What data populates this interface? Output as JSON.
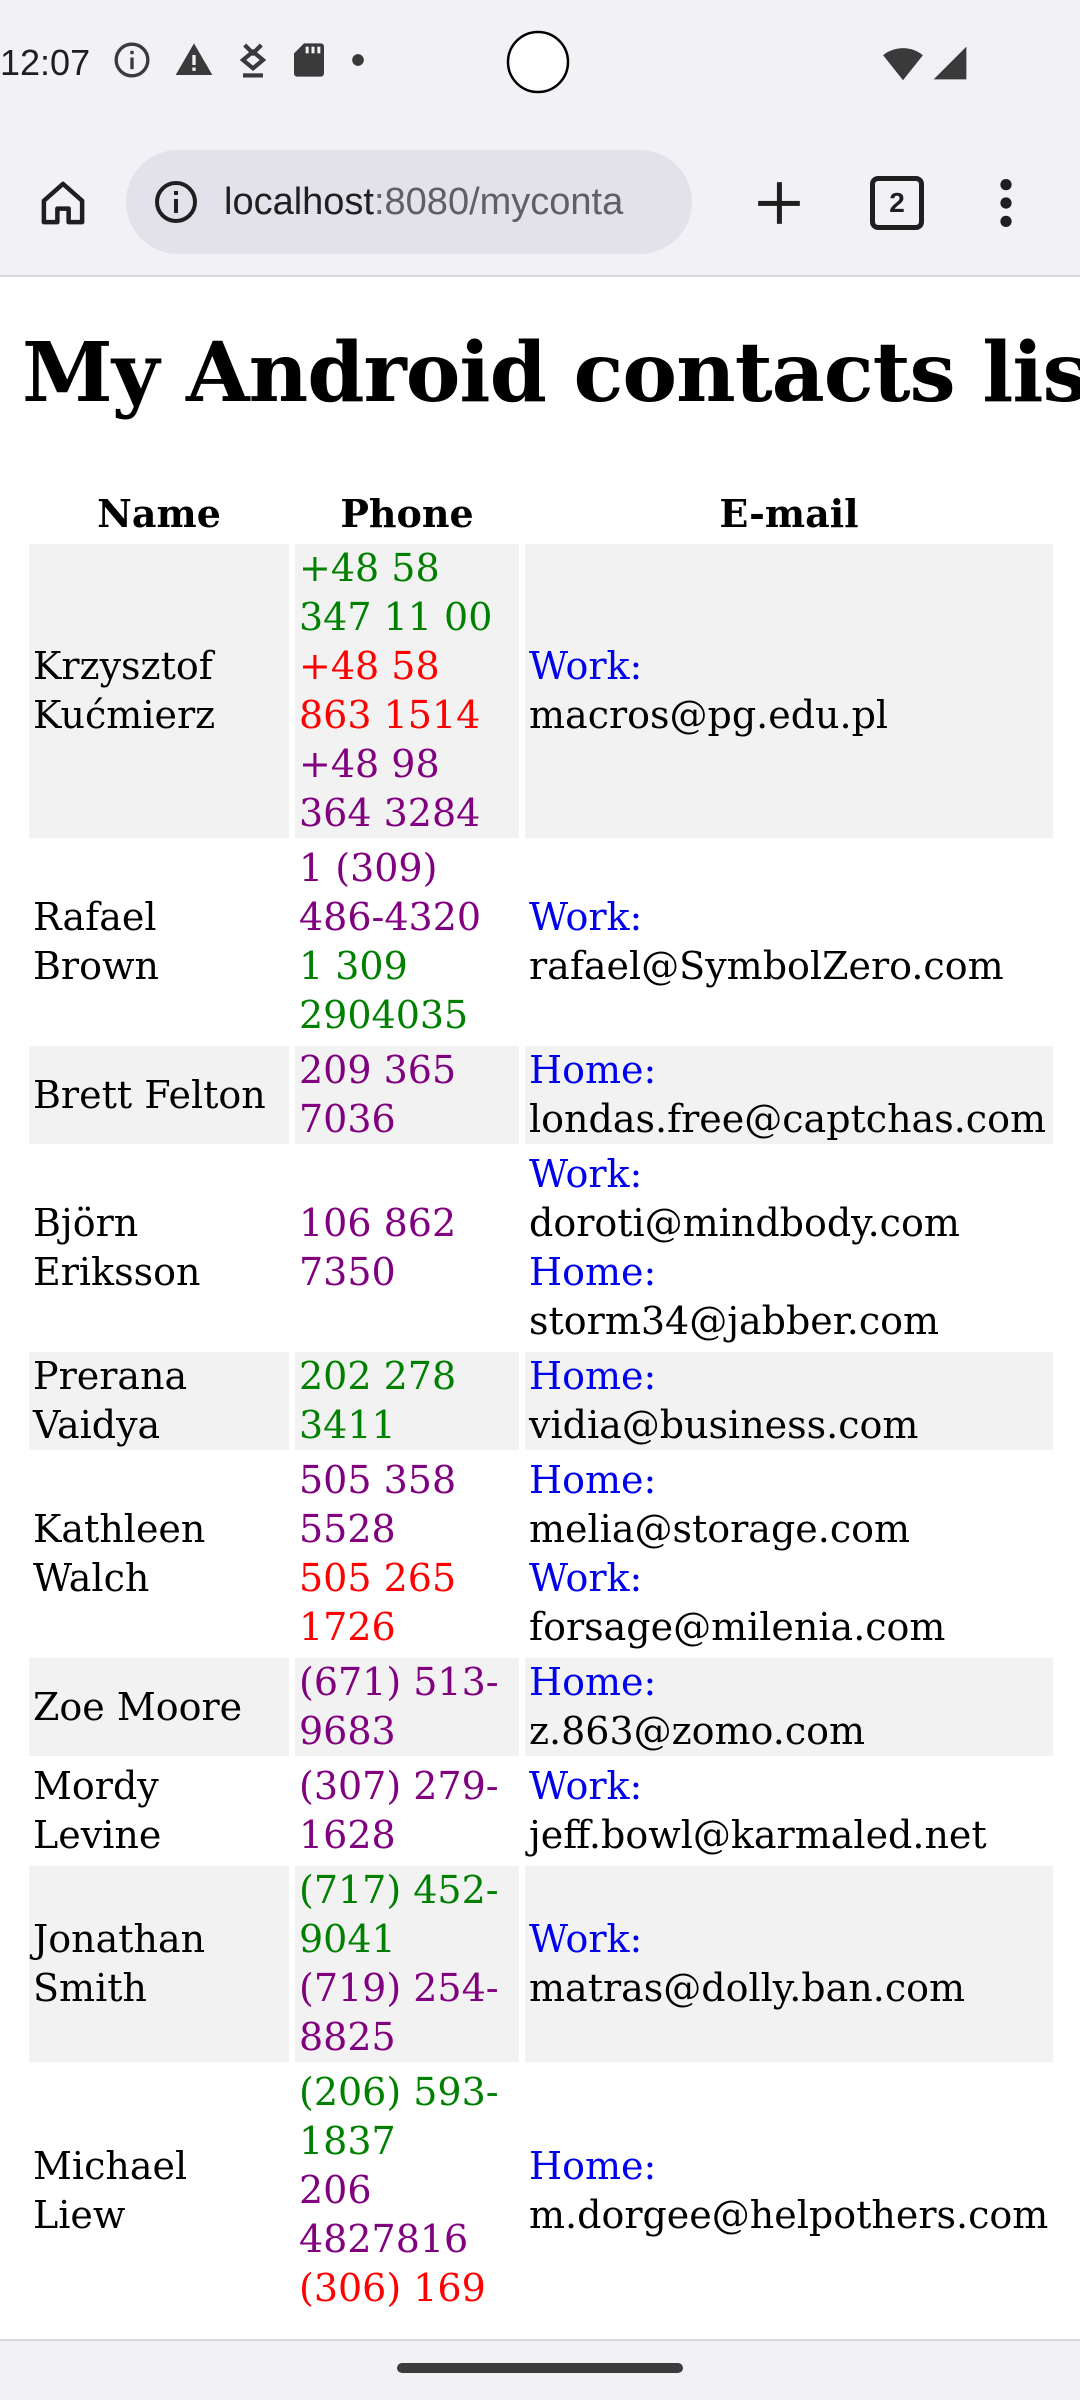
{
  "status_bar": {
    "time": "12:07",
    "left_icons": [
      "info-icon",
      "warning-icon",
      "download-icon",
      "sd-card-icon",
      "dot-icon"
    ],
    "right_icons": [
      "wifi-icon",
      "cell-signal-icon"
    ]
  },
  "browser": {
    "url_host": "localhost",
    "url_rest": ":8080/myconta",
    "tab_count": "2",
    "icons": [
      "home-icon",
      "info-icon",
      "plus-icon",
      "tabs-icon",
      "more-vert-icon"
    ]
  },
  "page": {
    "title": "My Android contacts list",
    "columns": {
      "name": "Name",
      "phone": "Phone",
      "email": "E-mail"
    },
    "colors": {
      "green": "#008000",
      "red": "#ff0000",
      "purple": "#800080",
      "label_blue": "#0000ee",
      "row_gray": "#f2f2f2"
    },
    "contacts": [
      {
        "name": "Krzysztof Kućmierz",
        "phones": [
          {
            "number": "+48 58 347 11 00",
            "color": "#008000"
          },
          {
            "number": "+48 58 863 1514",
            "color": "#ff0000"
          },
          {
            "number": "+48 98 364 3284",
            "color": "#800080"
          }
        ],
        "emails": [
          {
            "label": "Work:",
            "address": "macros@pg.edu.pl"
          }
        ]
      },
      {
        "name": "Rafael Brown",
        "phones": [
          {
            "number": "1 (309) 486-4320",
            "color": "#800080"
          },
          {
            "number": "1 309 2904035",
            "color": "#008000"
          }
        ],
        "emails": [
          {
            "label": "Work:",
            "address": "rafael@SymbolZero.com"
          }
        ]
      },
      {
        "name": "Brett Felton",
        "phones": [
          {
            "number": "209 365 7036",
            "color": "#800080"
          }
        ],
        "emails": [
          {
            "label": "Home:",
            "address": "londas.free@captchas.com"
          }
        ]
      },
      {
        "name": "Björn Eriksson",
        "phones": [
          {
            "number": "106 862 7350",
            "color": "#800080"
          }
        ],
        "emails": [
          {
            "label": "Work:",
            "address": "doroti@mindbody.com"
          },
          {
            "label": "Home:",
            "address": "storm34@jabber.com"
          }
        ]
      },
      {
        "name": "Prerana Vaidya",
        "phones": [
          {
            "number": "202 278 3411",
            "color": "#008000"
          }
        ],
        "emails": [
          {
            "label": "Home:",
            "address": "vidia@business.com"
          }
        ]
      },
      {
        "name": "Kathleen Walch",
        "phones": [
          {
            "number": "505 358 5528",
            "color": "#800080"
          },
          {
            "number": "505 265 1726",
            "color": "#ff0000"
          }
        ],
        "emails": [
          {
            "label": "Home:",
            "address": "melia@storage.com"
          },
          {
            "label": "Work:",
            "address": "forsage@milenia.com"
          }
        ]
      },
      {
        "name": "Zoe Moore",
        "phones": [
          {
            "number": "(671) 513-9683",
            "color": "#800080"
          }
        ],
        "emails": [
          {
            "label": "Home:",
            "address": "z.863@zomo.com"
          }
        ]
      },
      {
        "name": "Mordy Levine",
        "phones": [
          {
            "number": "(307) 279-1628",
            "color": "#800080"
          }
        ],
        "emails": [
          {
            "label": "Work:",
            "address": "jeff.bowl@karmaled.net"
          }
        ]
      },
      {
        "name": "Jonathan Smith",
        "phones": [
          {
            "number": "(717) 452-9041",
            "color": "#008000"
          },
          {
            "number": "(719) 254-8825",
            "color": "#800080"
          }
        ],
        "emails": [
          {
            "label": "Work:",
            "address": "matras@dolly.ban.com"
          }
        ]
      },
      {
        "name": "Michael Liew",
        "phones": [
          {
            "number": "(206) 593-1837",
            "color": "#008000"
          },
          {
            "number": "206 4827816",
            "color": "#800080"
          },
          {
            "number": "(306) 169",
            "color": "#ff0000"
          }
        ],
        "emails": [
          {
            "label": "Home:",
            "address": "m.dorgee@helpothers.com"
          }
        ]
      }
    ]
  }
}
